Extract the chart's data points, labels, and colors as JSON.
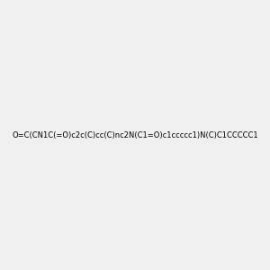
{
  "smiles": "O=C(CN1C(=O)c2c(C)cc(C)nc2N(C1=O)c1ccccc1)N(C)C1CCCCC1",
  "image_size": 300,
  "background_color": "#f0f0f0",
  "atom_colors": {
    "N": "#0000ff",
    "O": "#ff0000",
    "C": "#000000"
  },
  "title": ""
}
